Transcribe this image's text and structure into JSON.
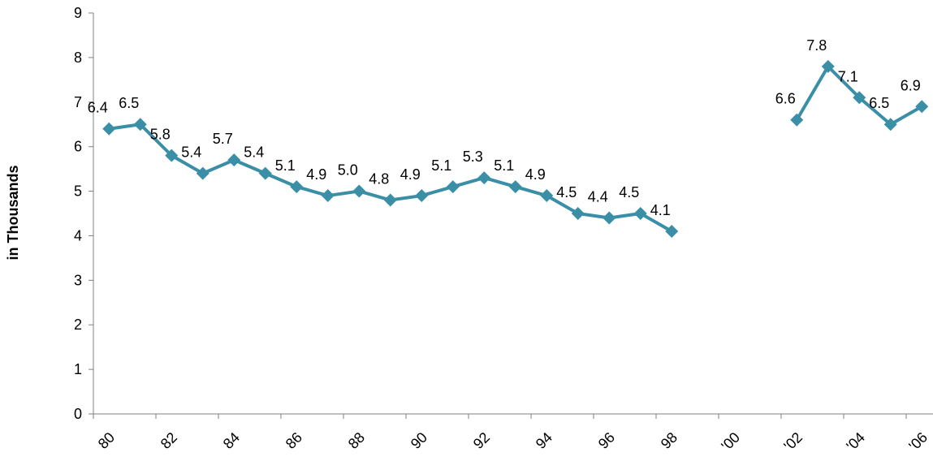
{
  "chart_data": {
    "type": "line",
    "title": "",
    "xlabel": "",
    "ylabel": "in Thousands",
    "ylim": [
      0,
      9
    ],
    "yticks": [
      "0",
      "1",
      "2",
      "3",
      "4",
      "5",
      "6",
      "7",
      "8",
      "9"
    ],
    "xticks": [
      "80",
      "82",
      "84",
      "86",
      "88",
      "90",
      "92",
      "94",
      "96",
      "98",
      "'00",
      "'02",
      "'04",
      "'06"
    ],
    "grid": false,
    "legend": "none",
    "line_color": "#3a8fa6",
    "series": [
      {
        "segments": [
          {
            "x": [
              1980,
              1981,
              1982,
              1983,
              1984,
              1985,
              1986,
              1987,
              1988,
              1989,
              1990,
              1991,
              1992,
              1993,
              1994,
              1995,
              1996,
              1997,
              1998
            ],
            "values": [
              6.4,
              6.5,
              5.8,
              5.4,
              5.7,
              5.4,
              5.1,
              4.9,
              5.0,
              4.8,
              4.9,
              5.1,
              5.3,
              5.1,
              4.9,
              4.5,
              4.4,
              4.5,
              4.1
            ],
            "labels": [
              "6.4",
              "6.5",
              "5.8",
              "5.4",
              "5.7",
              "5.4",
              "5.1",
              "4.9",
              "5.0",
              "4.8",
              "4.9",
              "5.1",
              "5.3",
              "5.1",
              "4.9",
              "4.5",
              "4.4",
              "4.5",
              "4.1"
            ]
          },
          {
            "x": [
              2002,
              2003,
              2004,
              2005,
              2006
            ],
            "values": [
              6.6,
              7.8,
              7.1,
              6.5,
              6.9
            ],
            "labels": [
              "6.6",
              "7.8",
              "7.1",
              "6.5",
              "6.9"
            ]
          }
        ]
      }
    ]
  }
}
